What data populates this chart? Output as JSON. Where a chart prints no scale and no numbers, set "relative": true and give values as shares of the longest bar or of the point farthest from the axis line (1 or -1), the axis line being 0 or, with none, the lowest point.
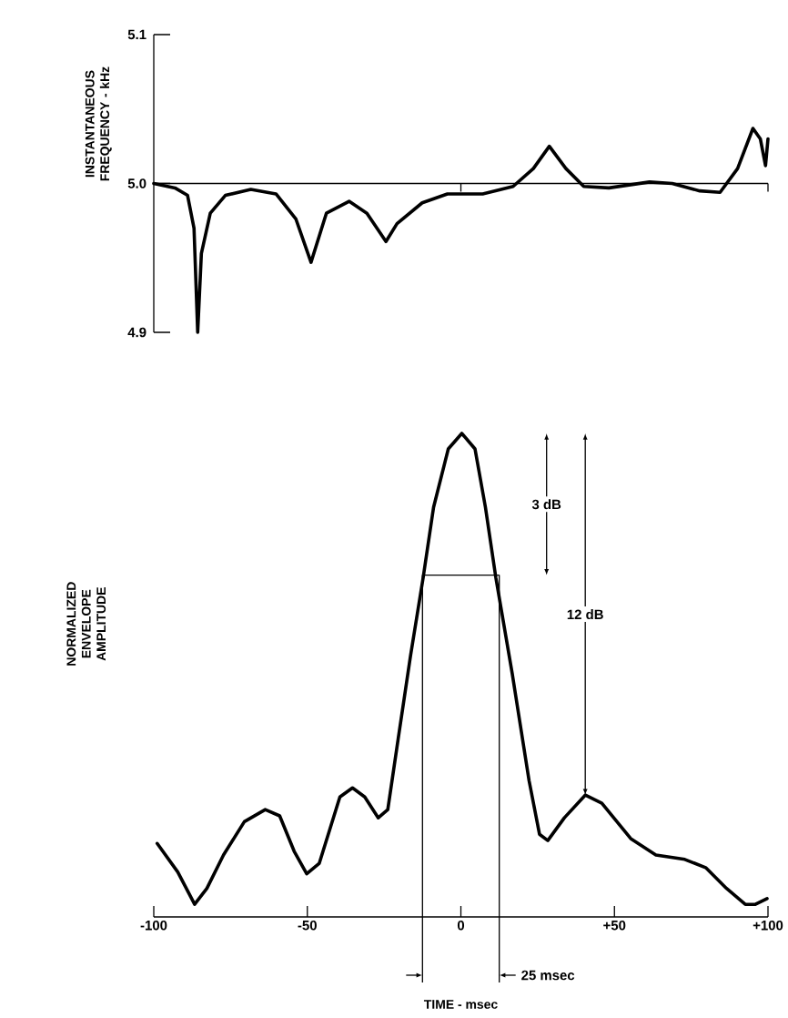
{
  "chart_data": [
    {
      "type": "line",
      "ylabel": "INSTANTANEOUS FREQUENCY - kHz",
      "color": "#000000",
      "tick_labels": "y",
      "x": [
        -100,
        -93.1,
        -89,
        -86.9,
        -85.7,
        -84.5,
        -81.6,
        -76.7,
        -68.4,
        -60.2,
        -53.7,
        -48.8,
        -43.8,
        -36.4,
        -30.6,
        -24.4,
        -20.8,
        -12.6,
        -4.4,
        7.1,
        17.0,
        23.6,
        28.8,
        34.2,
        40.0,
        48.2,
        61.4,
        68.8,
        77.8,
        84.4,
        90.1,
        95.1,
        97.5,
        99.2,
        100
      ],
      "values": [
        5.0,
        4.997,
        4.992,
        4.97,
        4.9,
        4.953,
        4.98,
        4.992,
        4.996,
        4.993,
        4.976,
        4.947,
        4.98,
        4.988,
        4.98,
        4.961,
        4.973,
        4.987,
        4.993,
        4.993,
        4.998,
        5.01,
        5.025,
        5.01,
        4.998,
        4.997,
        5.001,
        5.0,
        4.995,
        4.994,
        5.01,
        5.037,
        5.03,
        5.012,
        5.03
      ],
      "xlim": [
        -100,
        100
      ],
      "xticks": [
        {
          "value": 0,
          "label": null
        },
        {
          "value": 100,
          "label": null
        }
      ],
      "ylim": [
        4.9,
        5.1
      ],
      "yticks": [
        4.9,
        {
          "value": 5.0,
          "label": "5.0"
        },
        5.1
      ],
      "ref_lines": [
        {
          "axis": "y",
          "value": 5.0
        }
      ]
    },
    {
      "type": "line",
      "relative": true,
      "xlabel": "TIME - msec",
      "ylabel": "NORMALIZED ENVELOPE AMPLITUDE",
      "color": "#000000",
      "x": [
        -98.9,
        -92.2,
        -86.7,
        -82.7,
        -77.3,
        -70.5,
        -63.7,
        -59.0,
        -54.3,
        -50.2,
        -46.1,
        -39.4,
        -35.3,
        -31.3,
        -26.9,
        -23.8,
        -20.4,
        -16.4,
        -12.3,
        -8.9,
        -4.1,
        0.3,
        4.6,
        8.0,
        11.4,
        16.7,
        22.2,
        25.6,
        28.3,
        33.7,
        40.5,
        45.9,
        55.3,
        63.5,
        72.9,
        79.7,
        86.5,
        92.6,
        95.9,
        99.7
      ],
      "values": [
        0.152,
        0.093,
        0.026,
        0.059,
        0.128,
        0.197,
        0.222,
        0.209,
        0.136,
        0.089,
        0.111,
        0.248,
        0.267,
        0.248,
        0.205,
        0.222,
        0.369,
        0.54,
        0.701,
        0.847,
        0.968,
        1.0,
        0.968,
        0.847,
        0.701,
        0.504,
        0.282,
        0.171,
        0.158,
        0.205,
        0.252,
        0.235,
        0.162,
        0.128,
        0.119,
        0.102,
        0.059,
        0.026,
        0.026,
        0.038
      ],
      "xlim": [
        -100,
        100
      ],
      "xticks": [
        -100,
        -50,
        0,
        {
          "value": 50,
          "label": "+50"
        },
        {
          "value": 100,
          "label": "+100"
        }
      ],
      "ref_lines": [
        {
          "axis": "y",
          "value": 0.707
        },
        {
          "axis": "x",
          "value": -12.5
        },
        {
          "axis": "x",
          "value": 12.5,
          "label": "25 msec"
        }
      ],
      "annotations": [
        "3 dB",
        "12 dB"
      ]
    }
  ]
}
